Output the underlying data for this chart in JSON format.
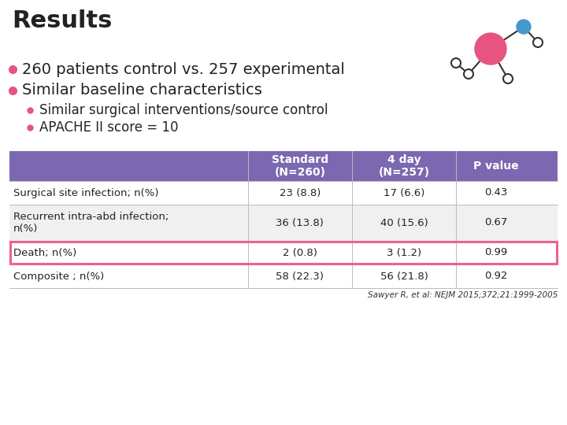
{
  "title": "Results",
  "bg_color": "#ffffff",
  "bullet_color": "#e75480",
  "bullet1": "260 patients control vs. 257 experimental",
  "bullet2": "Similar baseline characteristics",
  "sub_bullet1": "Similar surgical interventions/source control",
  "sub_bullet2": "APACHE II score = 10",
  "table": {
    "header_bg": "#7B68B0",
    "header_text_color": "#ffffff",
    "highlight_row_border": "#f06090",
    "col_headers": [
      "Standard\n(N=260)",
      "4 day\n(N=257)",
      "P value"
    ],
    "rows": [
      [
        "Surgical site infection; n(%)",
        "23 (8.8)",
        "17 (6.6)",
        "0.43"
      ],
      [
        "Recurrent intra-abd infection;\nn(%)",
        "36 (13.8)",
        "40 (15.6)",
        "0.67"
      ],
      [
        "Death; n(%)",
        "2 (0.8)",
        "3 (1.2)",
        "0.99"
      ],
      [
        "Composite ; n(%)",
        "58 (22.3)",
        "56 (21.8)",
        "0.92"
      ]
    ],
    "highlight_row_index": 2
  },
  "citation": "Sawyer R, et al: NEJM 2015;372;21:1999-2005",
  "title_fontsize": 22,
  "bullet_fontsize": 14,
  "sub_bullet_fontsize": 12,
  "table_header_fontsize": 10,
  "table_body_fontsize": 9.5,
  "citation_fontsize": 7.5
}
